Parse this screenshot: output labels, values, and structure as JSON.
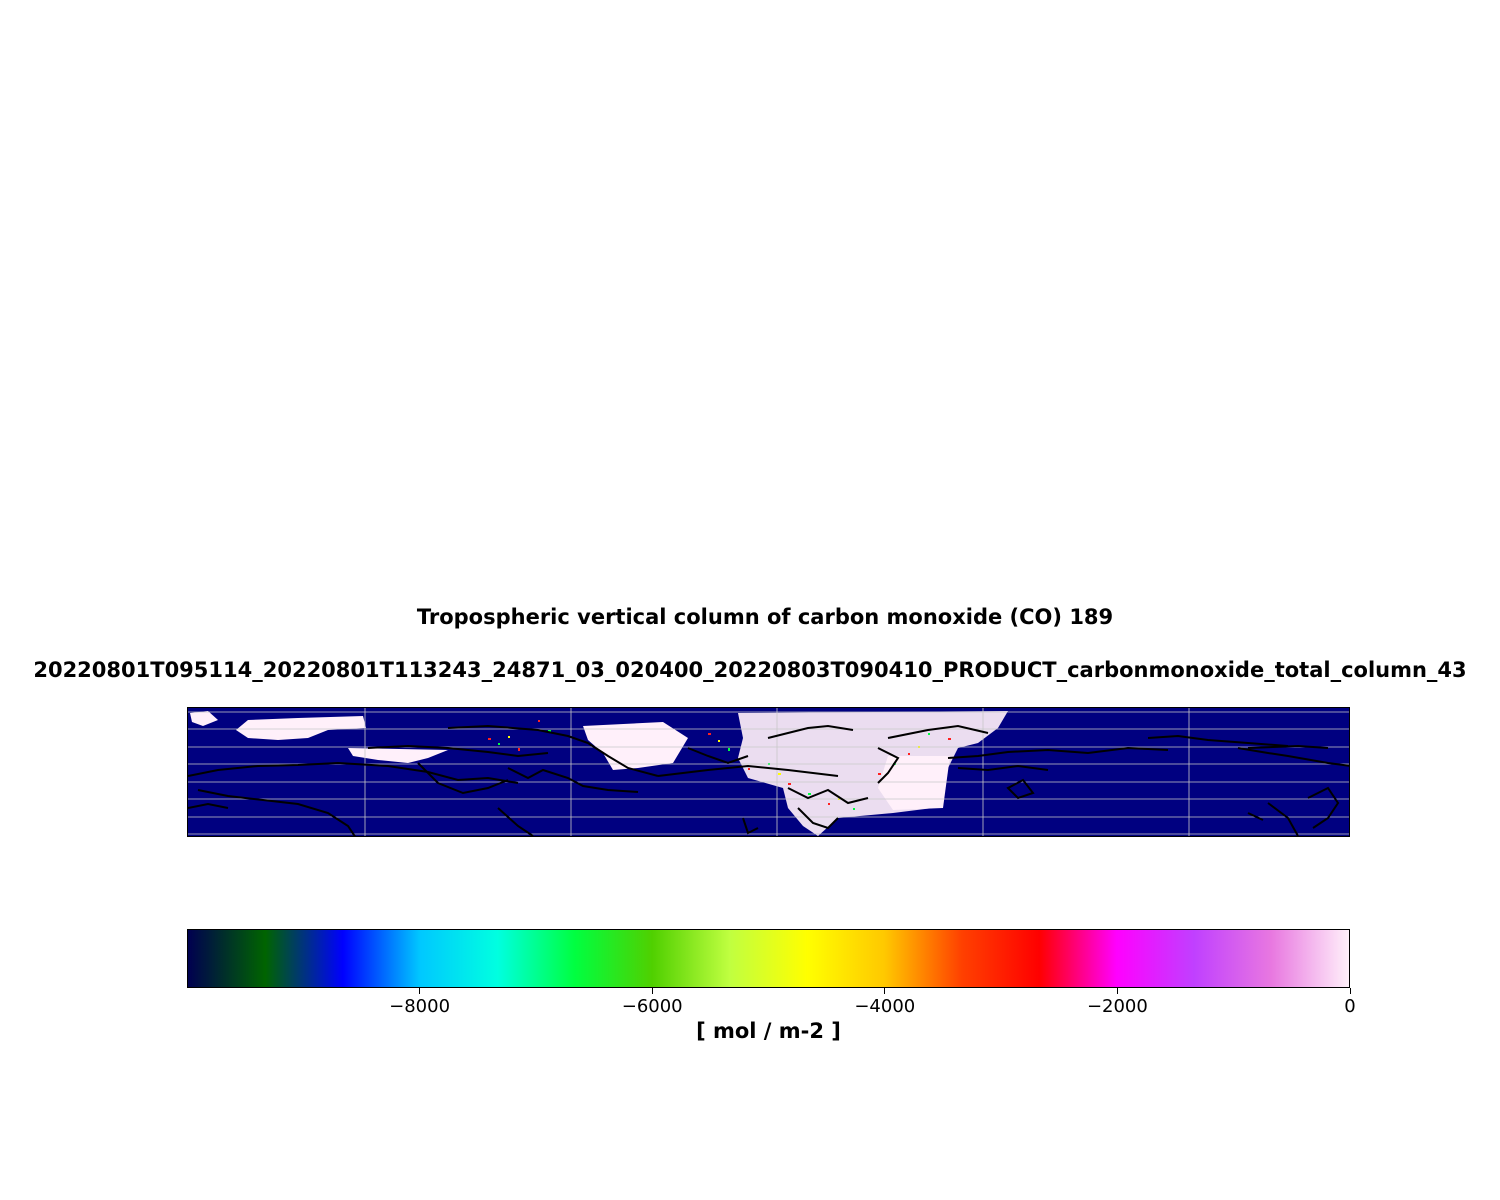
{
  "title": "Tropospheric vertical column of carbon monoxide (CO) 189",
  "subtitle": "20220801T095114_20220801T113243_24871_03_020400_20220803T090410_PRODUCT_carbonmonoxide_total_column_43",
  "map": {
    "background_color": "#000080",
    "coastline_color": "#000000",
    "gridline_color": "#c8c8c8",
    "data_color": "#fff0fa"
  },
  "colorbar": {
    "min": -10000,
    "max": 0,
    "ticks": [
      "−8000",
      "−6000",
      "−4000",
      "−2000",
      "0"
    ],
    "tick_values": [
      -8000,
      -6000,
      -4000,
      -2000,
      0
    ],
    "label": "[ mol / m-2 ]",
    "colors": [
      "#000050",
      "#006400",
      "#0000ff",
      "#00c8ff",
      "#00ffe0",
      "#00ff40",
      "#50d000",
      "#c0ff40",
      "#ffff00",
      "#ffc800",
      "#ff4000",
      "#ff0000",
      "#ff00ff",
      "#c040ff",
      "#e878e0",
      "#fff0fa"
    ]
  }
}
